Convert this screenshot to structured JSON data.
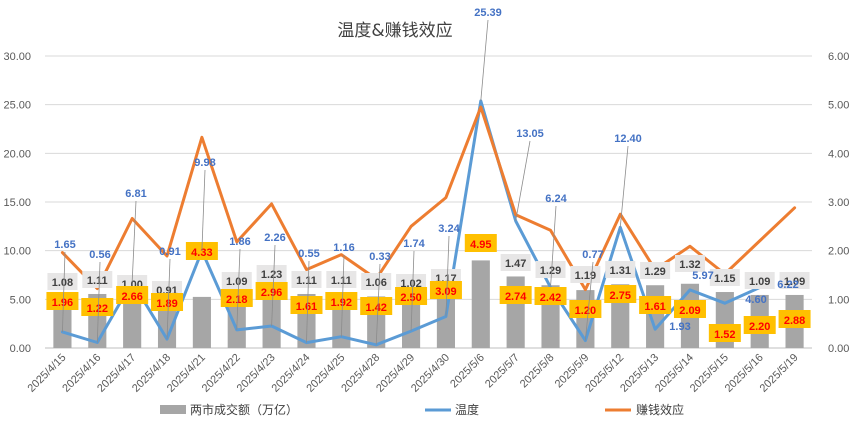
{
  "chart_data": {
    "type": "bar",
    "title": "温度&赚钱效应",
    "categories": [
      "2025/4/15",
      "2025/4/16",
      "2025/4/17",
      "2025/4/18",
      "2025/4/21",
      "2025/4/22",
      "2025/4/23",
      "2025/4/24",
      "2025/4/25",
      "2025/4/28",
      "2025/4/29",
      "2025/4/30",
      "2025/5/6",
      "2025/5/7",
      "2025/5/8",
      "2025/5/9",
      "2025/5/12",
      "2025/5/13",
      "2025/5/14",
      "2025/5/15",
      "2025/5/16",
      "2025/5/19"
    ],
    "left_axis": {
      "min": 0,
      "max": 30,
      "ticks": [
        "0.00",
        "5.00",
        "10.00",
        "15.00",
        "20.00",
        "25.00",
        "30.00"
      ]
    },
    "right_axis": {
      "min": 0,
      "max": 6,
      "ticks": [
        "0.00",
        "1.00",
        "2.00",
        "3.00",
        "4.00",
        "5.00",
        "6.00"
      ]
    },
    "series": [
      {
        "name": "两市成交额（万亿）",
        "kind": "bar",
        "axis": "right",
        "color": "#a6a6a6",
        "values": [
          1.08,
          1.11,
          1.0,
          0.91,
          1.05,
          1.09,
          1.23,
          1.11,
          1.11,
          1.06,
          1.02,
          1.17,
          1.8,
          1.47,
          1.29,
          1.19,
          1.31,
          1.29,
          1.32,
          1.15,
          1.09,
          1.09
        ],
        "labels": [
          "1.08",
          "1.11",
          "1.00",
          "0.91",
          "",
          "1.09",
          "1.23",
          "1.11",
          "1.11",
          "1.06",
          "1.02",
          "1.17",
          "",
          "1.47",
          "1.29",
          "1.19",
          "1.31",
          "1.29",
          "1.32",
          "1.15",
          "1.09",
          "1.09"
        ]
      },
      {
        "name": "温度",
        "kind": "line",
        "axis": "left",
        "color": "#5b9bd5",
        "values": [
          1.65,
          0.56,
          6.81,
          0.91,
          9.98,
          1.86,
          2.26,
          0.55,
          1.16,
          0.33,
          1.74,
          3.24,
          25.39,
          13.05,
          6.24,
          0.77,
          12.4,
          1.93,
          5.97,
          4.6,
          6.22,
          null
        ],
        "labels": [
          "1.65",
          "0.56",
          "6.81",
          "0.91",
          "9.98",
          "1.86",
          "2.26",
          "0.55",
          "1.16",
          "0.33",
          "1.74",
          "3.24",
          "25.39",
          "13.05",
          "6.24",
          "0.77",
          "12.40",
          "1.93",
          "5.97",
          "4.60",
          "6.22",
          ""
        ]
      },
      {
        "name": "赚钱效应",
        "kind": "line",
        "axis": "right",
        "color": "#ed7d31",
        "values": [
          1.96,
          1.22,
          2.66,
          1.89,
          4.33,
          2.18,
          2.96,
          1.61,
          1.92,
          1.42,
          2.5,
          3.09,
          4.95,
          2.74,
          2.42,
          1.2,
          2.75,
          1.61,
          2.09,
          1.52,
          2.2,
          2.88
        ],
        "labels": [
          "1.96",
          "1.22",
          "2.66",
          "1.89",
          "4.33",
          "2.18",
          "2.96",
          "1.61",
          "1.92",
          "1.42",
          "2.50",
          "3.09",
          "4.95",
          "2.74",
          "2.42",
          "1.20",
          "2.75",
          "1.61",
          "2.09",
          "1.52",
          "2.20",
          "2.88"
        ]
      }
    ],
    "legend": {
      "position": "bottom"
    },
    "grid": true
  }
}
